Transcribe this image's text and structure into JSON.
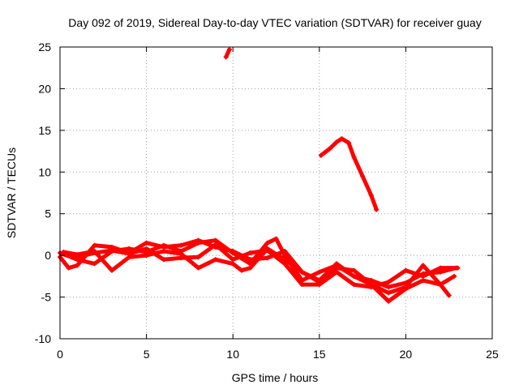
{
  "chart_data": {
    "type": "line",
    "title": "Day 092 of 2019, Sidereal Day-to-day VTEC variation (SDTVAR) for receiver guay",
    "xlabel": "GPS time / hours",
    "ylabel": "SDTVAR / TECUs",
    "xlim": [
      0,
      25
    ],
    "ylim": [
      -10,
      25
    ],
    "xticks": [
      0,
      5,
      10,
      15,
      20,
      25
    ],
    "yticks": [
      -10,
      -5,
      0,
      5,
      10,
      15,
      20,
      25
    ],
    "xtick_labels": [
      "0",
      "5",
      "10",
      "15",
      "20",
      "25"
    ],
    "ytick_labels": [
      "-10",
      "-5",
      "0",
      "5",
      "10",
      "15",
      "20",
      "25"
    ],
    "grid": true,
    "series_color": "#ff0000",
    "series": [
      {
        "name": "track-1",
        "x": [
          0,
          1,
          2,
          3,
          4,
          5,
          6,
          7,
          8,
          9,
          10,
          11,
          12,
          12.5,
          13,
          14,
          15,
          16,
          17,
          18,
          19,
          20,
          21,
          22,
          22.9
        ],
        "y": [
          0.3,
          -0.5,
          -1.0,
          0.5,
          0.8,
          0.4,
          1.2,
          0.5,
          1.5,
          1.8,
          0.3,
          -1.0,
          1.5,
          2.0,
          0.0,
          -3.0,
          -2.0,
          -1.2,
          -2.5,
          -3.0,
          -3.8,
          -3.3,
          -2.2,
          -2.0,
          -1.5
        ]
      },
      {
        "name": "track-2",
        "x": [
          0,
          0.5,
          1,
          2,
          3,
          4,
          5,
          6,
          7,
          8,
          9,
          10,
          11,
          12,
          13,
          14,
          15,
          16,
          17,
          18,
          19,
          20,
          21,
          22,
          22.8
        ],
        "y": [
          -0.2,
          -1.5,
          -1.2,
          1.2,
          1.0,
          0.3,
          1.5,
          1.0,
          1.2,
          1.8,
          1.0,
          0.5,
          -0.5,
          -0.3,
          0.5,
          -2.0,
          -3.2,
          -1.5,
          -1.8,
          -3.5,
          -5.5,
          -4.0,
          -3.0,
          -3.5,
          -2.5
        ]
      },
      {
        "name": "track-3",
        "x": [
          0.2,
          1,
          2,
          3,
          4,
          5,
          6,
          7,
          8,
          9,
          10,
          10.5,
          11,
          12,
          13,
          14,
          15,
          16,
          17,
          18,
          19,
          20,
          21,
          22,
          22.5
        ],
        "y": [
          0.4,
          0.1,
          0.5,
          -1.8,
          -0.2,
          0.0,
          0.5,
          0.2,
          -1.5,
          -0.5,
          -1.0,
          -1.8,
          -1.5,
          0.8,
          -0.5,
          -2.0,
          -3.0,
          -1.0,
          -2.5,
          -3.5,
          -4.5,
          -3.8,
          -1.2,
          -3.5,
          -4.8
        ]
      },
      {
        "name": "track-4",
        "x": [
          0.5,
          1,
          2,
          3,
          4,
          5,
          6,
          7,
          8,
          9,
          10,
          11,
          12,
          13,
          14,
          15,
          16,
          17,
          18,
          19,
          20,
          21,
          22,
          23
        ],
        "y": [
          0.0,
          -0.2,
          0.3,
          0.6,
          0.2,
          0.8,
          -0.5,
          -0.3,
          -0.2,
          1.3,
          -0.5,
          0.3,
          0.6,
          -1.0,
          -3.5,
          -3.5,
          -2.0,
          -3.5,
          -3.8,
          -3.2,
          -1.8,
          -2.5,
          -1.5,
          -1.5
        ]
      },
      {
        "name": "track-5",
        "x": [
          9.6,
          9.8
        ],
        "y": [
          23.8,
          24.7
        ]
      },
      {
        "name": "track-6",
        "x": [
          15.1,
          15.6,
          16.0,
          16.3,
          16.7,
          17.0,
          17.5,
          18.0,
          18.3
        ],
        "y": [
          12.0,
          12.8,
          13.6,
          14.0,
          13.5,
          11.8,
          9.5,
          7.2,
          5.5
        ]
      }
    ]
  }
}
